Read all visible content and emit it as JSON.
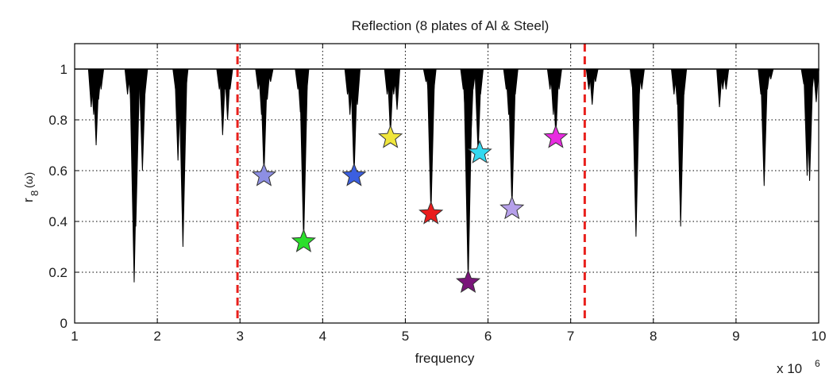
{
  "chart_data": {
    "type": "line",
    "title": "Reflection (8 plates of Al & Steel)",
    "xlabel": "frequency",
    "ylabel": "r",
    "ylabel_sub": "8",
    "ylabel_arg": "(ω)",
    "x_multiplier": "x 10",
    "x_multiplier_exp": "6",
    "xlim": [
      1,
      10
    ],
    "ylim": [
      0,
      1.1
    ],
    "xticks": [
      1,
      2,
      3,
      4,
      5,
      6,
      7,
      8,
      9,
      10
    ],
    "yticks": [
      0,
      0.2,
      0.4,
      0.6,
      0.8,
      1
    ],
    "grid": true,
    "baseline": 1.0,
    "dips": [
      {
        "x": 1.2,
        "y": 0.85
      },
      {
        "x": 1.23,
        "y": 0.82
      },
      {
        "x": 1.26,
        "y": 0.7
      },
      {
        "x": 1.29,
        "y": 0.88
      },
      {
        "x": 1.32,
        "y": 0.92
      },
      {
        "x": 1.64,
        "y": 0.9
      },
      {
        "x": 1.68,
        "y": 0.87
      },
      {
        "x": 1.72,
        "y": 0.16
      },
      {
        "x": 1.74,
        "y": 0.38
      },
      {
        "x": 1.78,
        "y": 0.92
      },
      {
        "x": 1.82,
        "y": 0.6
      },
      {
        "x": 1.85,
        "y": 0.9
      },
      {
        "x": 2.22,
        "y": 0.92
      },
      {
        "x": 2.25,
        "y": 0.64
      },
      {
        "x": 2.28,
        "y": 0.85
      },
      {
        "x": 2.31,
        "y": 0.3
      },
      {
        "x": 2.34,
        "y": 0.9
      },
      {
        "x": 2.75,
        "y": 0.92
      },
      {
        "x": 2.79,
        "y": 0.74
      },
      {
        "x": 2.82,
        "y": 0.92
      },
      {
        "x": 2.85,
        "y": 0.8
      },
      {
        "x": 2.88,
        "y": 0.92
      },
      {
        "x": 3.22,
        "y": 0.92
      },
      {
        "x": 3.26,
        "y": 0.82
      },
      {
        "x": 3.29,
        "y": 0.58
      },
      {
        "x": 3.33,
        "y": 0.88
      },
      {
        "x": 3.37,
        "y": 0.95
      },
      {
        "x": 3.7,
        "y": 0.92
      },
      {
        "x": 3.73,
        "y": 0.83
      },
      {
        "x": 3.77,
        "y": 0.32
      },
      {
        "x": 3.8,
        "y": 0.88
      },
      {
        "x": 4.3,
        "y": 0.9
      },
      {
        "x": 4.33,
        "y": 0.82
      },
      {
        "x": 4.38,
        "y": 0.58
      },
      {
        "x": 4.42,
        "y": 0.86
      },
      {
        "x": 4.78,
        "y": 0.9
      },
      {
        "x": 4.82,
        "y": 0.74
      },
      {
        "x": 4.86,
        "y": 0.9
      },
      {
        "x": 4.9,
        "y": 0.84
      },
      {
        "x": 5.25,
        "y": 0.95
      },
      {
        "x": 5.28,
        "y": 0.9
      },
      {
        "x": 5.31,
        "y": 0.43
      },
      {
        "x": 5.34,
        "y": 0.9
      },
      {
        "x": 5.7,
        "y": 0.92
      },
      {
        "x": 5.73,
        "y": 0.78
      },
      {
        "x": 5.76,
        "y": 0.16
      },
      {
        "x": 5.79,
        "y": 0.7
      },
      {
        "x": 5.82,
        "y": 0.92
      },
      {
        "x": 5.88,
        "y": 0.67
      },
      {
        "x": 5.91,
        "y": 0.9
      },
      {
        "x": 6.22,
        "y": 0.92
      },
      {
        "x": 6.25,
        "y": 0.82
      },
      {
        "x": 6.29,
        "y": 0.45
      },
      {
        "x": 6.33,
        "y": 0.9
      },
      {
        "x": 6.75,
        "y": 0.92
      },
      {
        "x": 6.79,
        "y": 0.82
      },
      {
        "x": 6.82,
        "y": 0.73
      },
      {
        "x": 6.86,
        "y": 0.92
      },
      {
        "x": 7.22,
        "y": 0.92
      },
      {
        "x": 7.26,
        "y": 0.86
      },
      {
        "x": 7.3,
        "y": 0.95
      },
      {
        "x": 7.75,
        "y": 0.92
      },
      {
        "x": 7.79,
        "y": 0.34
      },
      {
        "x": 7.82,
        "y": 0.86
      },
      {
        "x": 7.86,
        "y": 0.92
      },
      {
        "x": 8.25,
        "y": 0.9
      },
      {
        "x": 8.29,
        "y": 0.86
      },
      {
        "x": 8.33,
        "y": 0.38
      },
      {
        "x": 8.37,
        "y": 0.9
      },
      {
        "x": 8.8,
        "y": 0.85
      },
      {
        "x": 8.84,
        "y": 0.92
      },
      {
        "x": 8.88,
        "y": 0.92
      },
      {
        "x": 9.3,
        "y": 0.9
      },
      {
        "x": 9.34,
        "y": 0.54
      },
      {
        "x": 9.38,
        "y": 0.92
      },
      {
        "x": 9.42,
        "y": 0.96
      },
      {
        "x": 9.82,
        "y": 0.94
      },
      {
        "x": 9.86,
        "y": 0.58
      },
      {
        "x": 9.89,
        "y": 0.56
      },
      {
        "x": 9.92,
        "y": 0.92
      },
      {
        "x": 9.97,
        "y": 0.87
      }
    ],
    "reference_lines": [
      {
        "x": 2.97,
        "color": "#e8201c",
        "style": "dashed"
      },
      {
        "x": 7.17,
        "color": "#e8201c",
        "style": "dashed"
      }
    ],
    "markers": [
      {
        "x": 3.29,
        "y": 0.58,
        "color": "#8d8fe3"
      },
      {
        "x": 3.77,
        "y": 0.32,
        "color": "#2bdf2b"
      },
      {
        "x": 4.38,
        "y": 0.58,
        "color": "#3b5fe0"
      },
      {
        "x": 4.82,
        "y": 0.73,
        "color": "#f0e63c"
      },
      {
        "x": 5.31,
        "y": 0.43,
        "color": "#ea1c1c"
      },
      {
        "x": 5.76,
        "y": 0.16,
        "color": "#7a157a"
      },
      {
        "x": 5.9,
        "y": 0.67,
        "color": "#34d9f0"
      },
      {
        "x": 6.29,
        "y": 0.45,
        "color": "#b6a0ea"
      },
      {
        "x": 6.82,
        "y": 0.73,
        "color": "#e82ce0"
      }
    ]
  }
}
